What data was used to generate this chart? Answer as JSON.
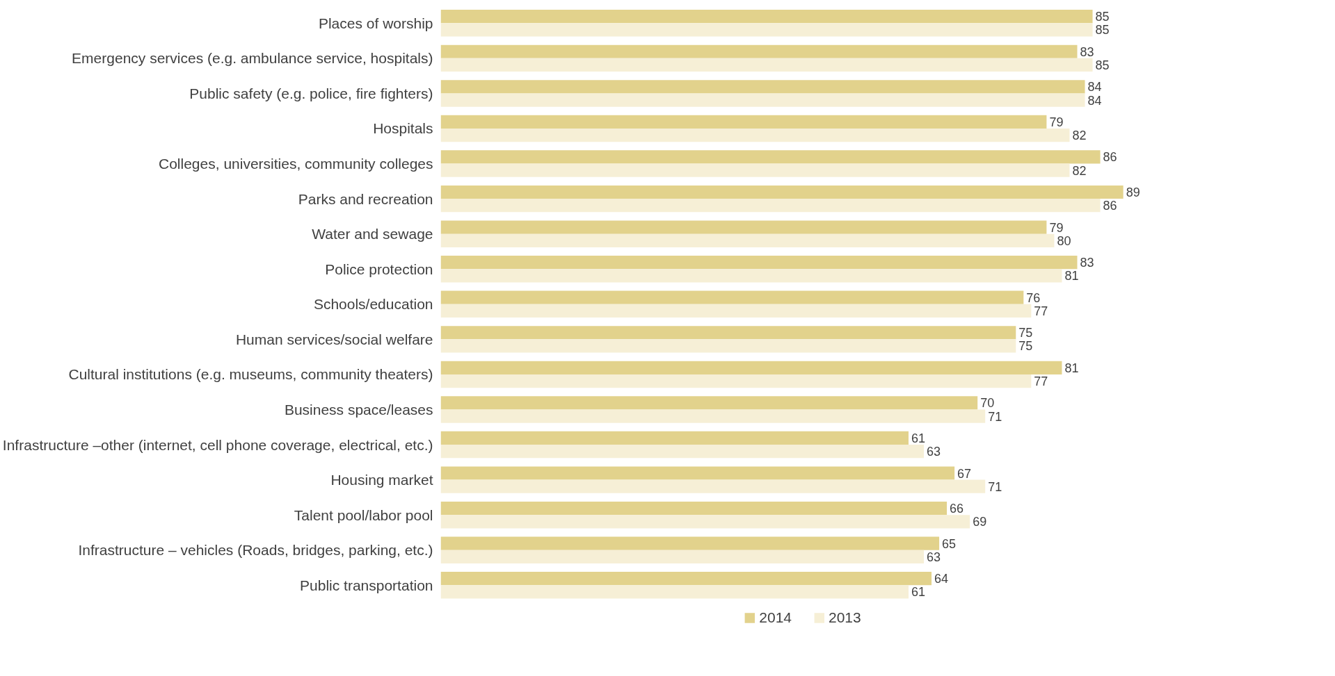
{
  "chart_data": {
    "type": "bar",
    "orientation": "horizontal",
    "data_labels": true,
    "legend": "bottom",
    "categories": [
      "Places of worship",
      "Emergency services (e.g. ambulance service, hospitals)",
      "Public safety (e.g. police, fire fighters)",
      "Hospitals",
      "Colleges, universities, community colleges",
      "Parks and recreation",
      "Water and sewage",
      "Police protection",
      "Schools/education",
      "Human services/social welfare",
      "Cultural institutions (e.g. museums, community theaters)",
      "Business space/leases",
      "Infrastructure –other (internet, cell phone coverage, electrical, etc.)",
      "Housing market",
      "Talent pool/labor pool",
      "Infrastructure – vehicles (Roads, bridges, parking, etc.)",
      "Public transportation"
    ],
    "series": [
      {
        "name": "2014",
        "color": "#e2d28c",
        "values": [
          85,
          83,
          84,
          79,
          86,
          89,
          79,
          83,
          76,
          75,
          81,
          70,
          61,
          67,
          66,
          65,
          64
        ]
      },
      {
        "name": "2013",
        "color": "#f6efd6",
        "values": [
          85,
          85,
          84,
          82,
          82,
          86,
          80,
          81,
          77,
          75,
          77,
          71,
          63,
          71,
          69,
          63,
          61
        ]
      }
    ]
  }
}
